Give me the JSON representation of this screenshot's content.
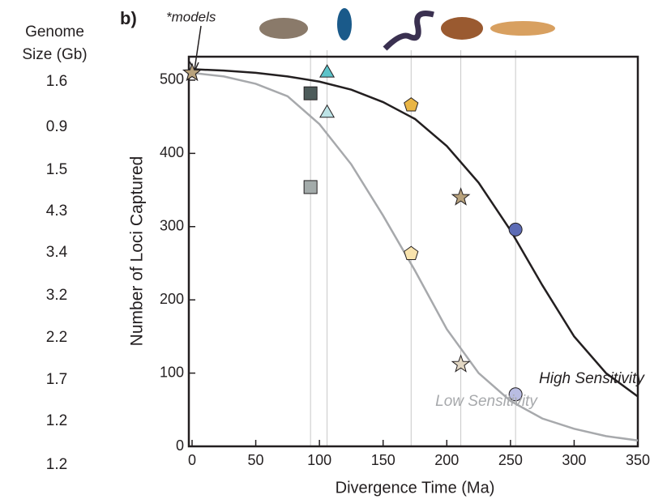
{
  "chart_data": {
    "type": "scatter",
    "panel_label": "b)",
    "annotation": "*models",
    "genome_size": {
      "title": "Genome Size (Gb)",
      "values": [
        1.6,
        0.9,
        1.5,
        4.3,
        3.4,
        3.2,
        2.2,
        1.7,
        1.2,
        1.2
      ]
    },
    "x_label": "Divergence Time (Ma)",
    "y_label": "Number of Loci Captured",
    "xlim": [
      0,
      350
    ],
    "ylim": [
      0,
      532
    ],
    "xticks": [
      0,
      50,
      100,
      150,
      200,
      250,
      300,
      350
    ],
    "yticks": [
      0,
      100,
      200,
      300,
      400,
      500
    ],
    "markers": [
      "star",
      "square",
      "triangle",
      "pentagon",
      "star",
      "circle"
    ],
    "series": [
      {
        "name": "High Sensitivity",
        "color": "#231f20",
        "x": [
          0,
          25,
          50,
          75,
          100,
          125,
          150,
          175,
          200,
          225,
          250,
          275,
          300,
          325,
          350
        ],
        "values": [
          515,
          513,
          510,
          505,
          498,
          487,
          470,
          447,
          410,
          360,
          295,
          220,
          150,
          100,
          68
        ],
        "points": {
          "x": [
            0,
            93,
            106,
            172,
            211,
            254
          ],
          "values": [
            510,
            482,
            512,
            466,
            340,
            296
          ],
          "colors": [
            "#b8a27c",
            "#4d5b5a",
            "#5dc3c9",
            "#e9b545",
            "#b8a27c",
            "#5c6bb5"
          ]
        }
      },
      {
        "name": "Low Sensitivity",
        "color": "#a7a9ac",
        "x": [
          0,
          25,
          50,
          75,
          100,
          125,
          150,
          175,
          200,
          225,
          250,
          275,
          300,
          325,
          350
        ],
        "values": [
          510,
          505,
          495,
          478,
          440,
          385,
          315,
          240,
          160,
          100,
          62,
          38,
          24,
          14,
          8
        ],
        "points": {
          "x": [
            0,
            93,
            106,
            172,
            211,
            254
          ],
          "values": [
            510,
            354,
            457,
            263,
            112,
            71
          ],
          "colors": [
            "#e2d7c3",
            "#a3abaa",
            "#bde3e6",
            "#f8e3ad",
            "#e2d7c3",
            "#b9bde2"
          ]
        }
      }
    ]
  }
}
